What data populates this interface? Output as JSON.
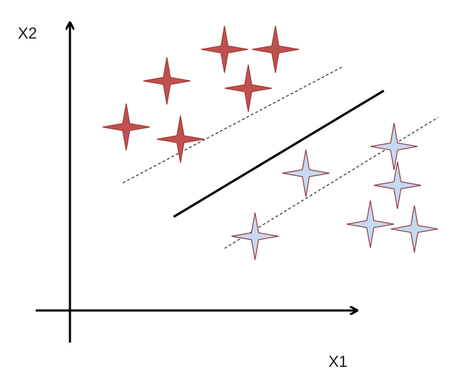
{
  "axes": {
    "x_label": "X1",
    "y_label": "X2"
  },
  "colors": {
    "class_a_fill": "#c0504d",
    "class_a_stroke": "#9c3a37",
    "class_b_fill": "#c6d9f1",
    "class_b_stroke": "#8b3a3a",
    "axis": "#000000",
    "hyperplane": "#000000",
    "margin": "#333333"
  },
  "class_a": {
    "name": "red",
    "points": [
      [
        0.42,
        0.92
      ],
      [
        0.57,
        0.92
      ],
      [
        0.25,
        0.79
      ],
      [
        0.49,
        0.76
      ],
      [
        0.13,
        0.6
      ],
      [
        0.29,
        0.55
      ]
    ]
  },
  "class_b": {
    "name": "blue",
    "points": [
      [
        0.92,
        0.52
      ],
      [
        0.93,
        0.36
      ],
      [
        0.66,
        0.41
      ],
      [
        0.85,
        0.2
      ],
      [
        0.98,
        0.18
      ],
      [
        0.51,
        0.15
      ]
    ]
  },
  "separator": {
    "hyperplane": [
      [
        0.27,
        0.23
      ],
      [
        0.89,
        0.75
      ]
    ],
    "margin_upper": [
      [
        0.12,
        0.37
      ],
      [
        0.77,
        0.85
      ]
    ],
    "margin_lower": [
      [
        0.42,
        0.1
      ],
      [
        1.05,
        0.64
      ]
    ]
  }
}
